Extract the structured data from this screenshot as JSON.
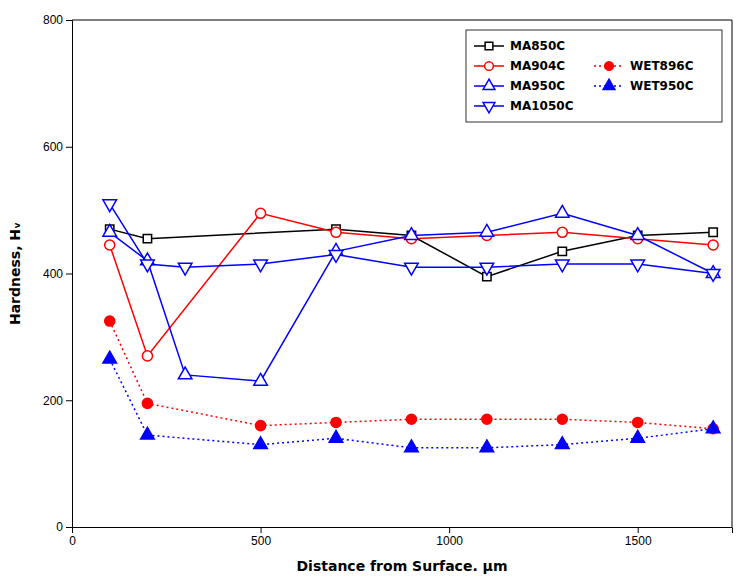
{
  "chart_data": {
    "type": "line",
    "xlabel": "Distance from Surface.  μm",
    "ylabel": "Hardness, Hᵥ",
    "xlim": [
      0,
      1750
    ],
    "ylim": [
      0,
      800
    ],
    "xticks": [
      0,
      500,
      1000,
      1500
    ],
    "yticks": [
      0,
      200,
      400,
      600,
      800
    ],
    "grid": false,
    "legend": "upper right",
    "series": [
      {
        "name": "MA850C",
        "color": "black",
        "line_style": "solid",
        "marker": "square-open",
        "x": [
          100,
          200,
          700,
          900,
          1100,
          1300,
          1500,
          1700
        ],
        "values": [
          470,
          455,
          470,
          460,
          395,
          435,
          460,
          465
        ]
      },
      {
        "name": "MA904C",
        "color": "red",
        "line_style": "solid",
        "marker": "circle-open",
        "x": [
          100,
          200,
          500,
          700,
          900,
          1100,
          1300,
          1500,
          1700
        ],
        "values": [
          445,
          270,
          495,
          465,
          455,
          460,
          465,
          455,
          445
        ]
      },
      {
        "name": "MA950C",
        "color": "blue",
        "line_style": "solid",
        "marker": "triangle-up-open",
        "x": [
          100,
          200,
          300,
          500,
          700,
          900,
          1100,
          1300,
          1500,
          1700
        ],
        "values": [
          465,
          420,
          240,
          230,
          435,
          460,
          465,
          495,
          460,
          400
        ]
      },
      {
        "name": "MA1050C",
        "color": "blue",
        "line_style": "solid",
        "marker": "triangle-down-open",
        "x": [
          100,
          200,
          300,
          500,
          700,
          900,
          1100,
          1300,
          1500,
          1700
        ],
        "values": [
          510,
          415,
          410,
          415,
          430,
          410,
          410,
          415,
          415,
          400
        ]
      },
      {
        "name": "WET896C",
        "color": "red",
        "line_style": "dotted",
        "marker": "circle",
        "x": [
          100,
          200,
          500,
          700,
          900,
          1100,
          1300,
          1500,
          1700
        ],
        "values": [
          325,
          195,
          160,
          165,
          170,
          170,
          170,
          165,
          155
        ]
      },
      {
        "name": "WET950C",
        "color": "blue",
        "line_style": "dotted",
        "marker": "triangle-up",
        "x": [
          100,
          200,
          500,
          700,
          900,
          1100,
          1300,
          1500,
          1700
        ],
        "values": [
          265,
          145,
          130,
          140,
          125,
          125,
          130,
          140,
          155
        ]
      }
    ]
  }
}
